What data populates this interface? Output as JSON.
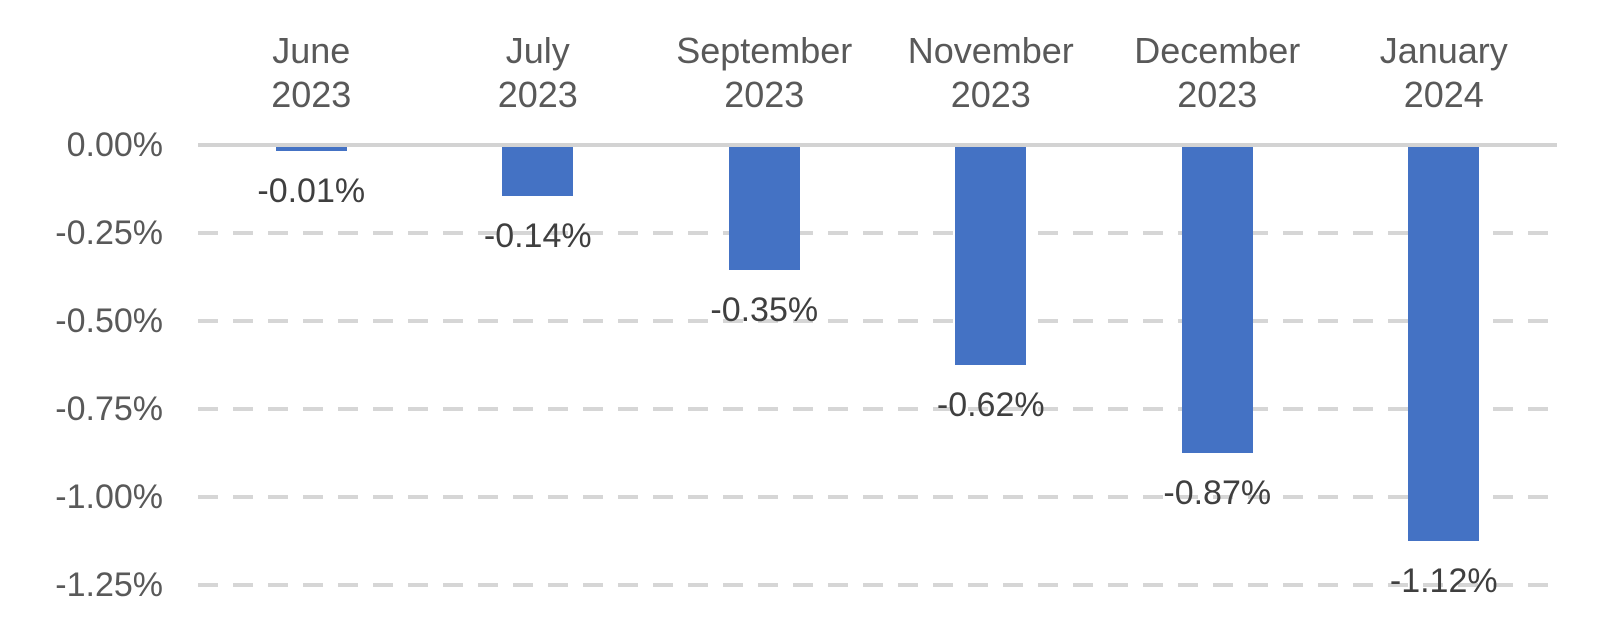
{
  "chart_data": {
    "type": "bar",
    "title": "",
    "xlabel": "",
    "ylabel": "",
    "unit": "%",
    "categories": [
      "June 2023",
      "July 2023",
      "September 2023",
      "November 2023",
      "December 2023",
      "January 2024"
    ],
    "categories_lines": [
      [
        "June",
        "2023"
      ],
      [
        "July",
        "2023"
      ],
      [
        "September",
        "2023"
      ],
      [
        "November",
        "2023"
      ],
      [
        "December",
        "2023"
      ],
      [
        "January",
        "2024"
      ]
    ],
    "values": [
      -0.01,
      -0.14,
      -0.35,
      -0.62,
      -0.87,
      -1.12
    ],
    "data_labels": [
      "-0.01%",
      "-0.14%",
      "-0.35%",
      "-0.62%",
      "-0.87%",
      "-1.12%"
    ],
    "yticks": [
      {
        "label": "0.00%",
        "value": 0
      },
      {
        "label": "-0.25%",
        "value": -0.25
      },
      {
        "label": "-0.50%",
        "value": -0.5
      },
      {
        "label": "-0.75%",
        "value": -0.75
      },
      {
        "label": "-1.00%",
        "value": -1.0
      },
      {
        "label": "-1.25%",
        "value": -1.25
      }
    ],
    "ylim": [
      -1.25,
      0
    ],
    "grid": "horizontal-dashed",
    "legend": "none",
    "bar_color": "#4472C4",
    "gridline_color": "#D6D6D6",
    "zero_line_color": "#D3D3D3",
    "axis_text_color": "#595959",
    "data_label_color": "#3F3F3F"
  }
}
